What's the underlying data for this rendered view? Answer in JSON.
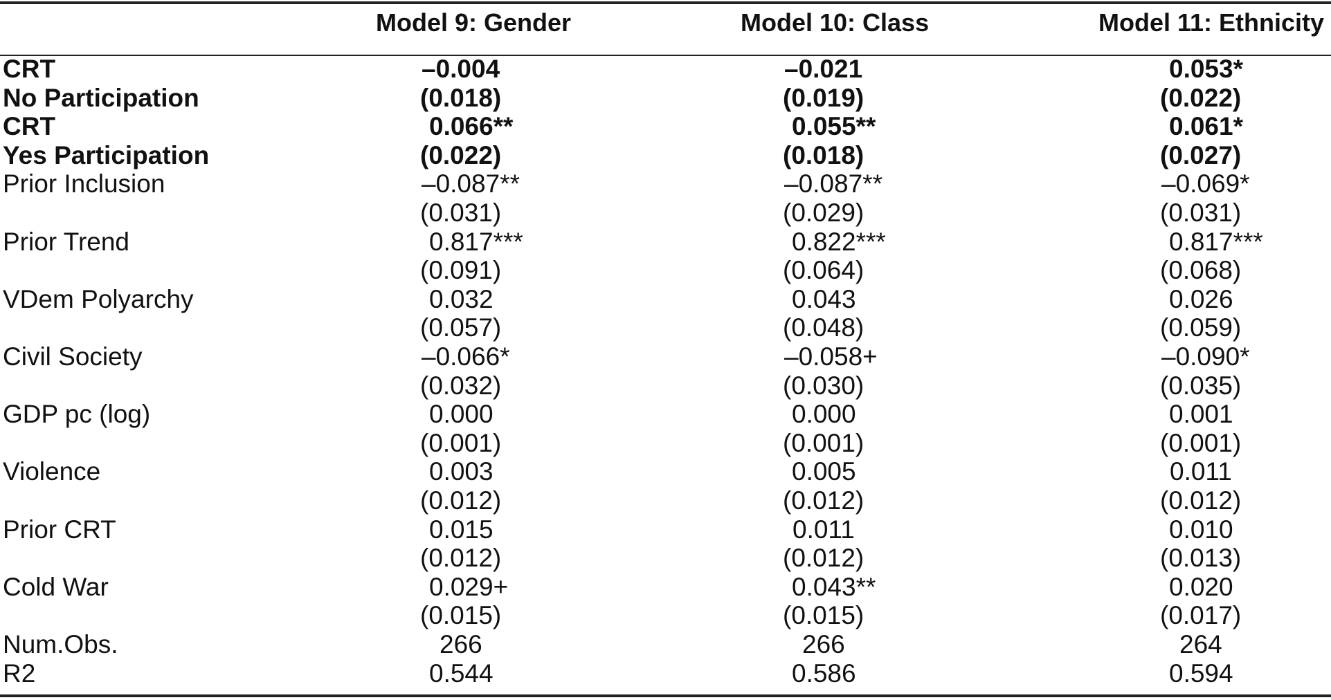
{
  "table": {
    "headers": [
      "",
      "Model 9: Gender",
      "Model 10: Class",
      "Model 11: Ethnicity"
    ],
    "rows": [
      {
        "label": "CRT",
        "bold": true,
        "values": [
          "–0.004",
          "–0.021",
          "0.053*"
        ]
      },
      {
        "label": "No Participation",
        "bold": true,
        "values": [
          "(0.018)",
          "(0.019)",
          "(0.022)"
        ]
      },
      {
        "label": "CRT",
        "bold": true,
        "values": [
          "0.066**",
          "0.055**",
          "0.061*"
        ]
      },
      {
        "label": "Yes Participation",
        "bold": true,
        "values": [
          "(0.022)",
          "(0.018)",
          "(0.027)"
        ]
      },
      {
        "label": "Prior Inclusion",
        "bold": false,
        "values": [
          "–0.087**",
          "–0.087**",
          "–0.069*"
        ]
      },
      {
        "label": "",
        "bold": false,
        "values": [
          "(0.031)",
          "(0.029)",
          "(0.031)"
        ]
      },
      {
        "label": "Prior Trend",
        "bold": false,
        "values": [
          "0.817***",
          "0.822***",
          "0.817***"
        ]
      },
      {
        "label": "",
        "bold": false,
        "values": [
          "(0.091)",
          "(0.064)",
          "(0.068)"
        ]
      },
      {
        "label": "VDem Polyarchy",
        "bold": false,
        "values": [
          "0.032",
          "0.043",
          "0.026"
        ]
      },
      {
        "label": "",
        "bold": false,
        "values": [
          "(0.057)",
          "(0.048)",
          "(0.059)"
        ]
      },
      {
        "label": "Civil Society",
        "bold": false,
        "values": [
          "–0.066*",
          "–0.058+",
          "–0.090*"
        ]
      },
      {
        "label": "",
        "bold": false,
        "values": [
          "(0.032)",
          "(0.030)",
          "(0.035)"
        ]
      },
      {
        "label": "GDP pc (log)",
        "bold": false,
        "values": [
          "0.000",
          "0.000",
          "0.001"
        ]
      },
      {
        "label": "",
        "bold": false,
        "values": [
          "(0.001)",
          "(0.001)",
          "(0.001)"
        ]
      },
      {
        "label": "Violence",
        "bold": false,
        "values": [
          "0.003",
          "0.005",
          "0.011"
        ]
      },
      {
        "label": "",
        "bold": false,
        "values": [
          "(0.012)",
          "(0.012)",
          "(0.012)"
        ]
      },
      {
        "label": "Prior CRT",
        "bold": false,
        "values": [
          "0.015",
          "0.011",
          "0.010"
        ]
      },
      {
        "label": "",
        "bold": false,
        "values": [
          "(0.012)",
          "(0.012)",
          "(0.013)"
        ]
      },
      {
        "label": "Cold War",
        "bold": false,
        "values": [
          "0.029+",
          "0.043**",
          "0.020"
        ]
      },
      {
        "label": "",
        "bold": false,
        "values": [
          "(0.015)",
          "(0.015)",
          "(0.017)"
        ]
      },
      {
        "label": "Num.Obs.",
        "bold": false,
        "values": [
          "266",
          "266",
          "264"
        ]
      },
      {
        "label": "R2",
        "bold": false,
        "values": [
          "0.544",
          "0.586",
          "0.594"
        ]
      }
    ]
  }
}
